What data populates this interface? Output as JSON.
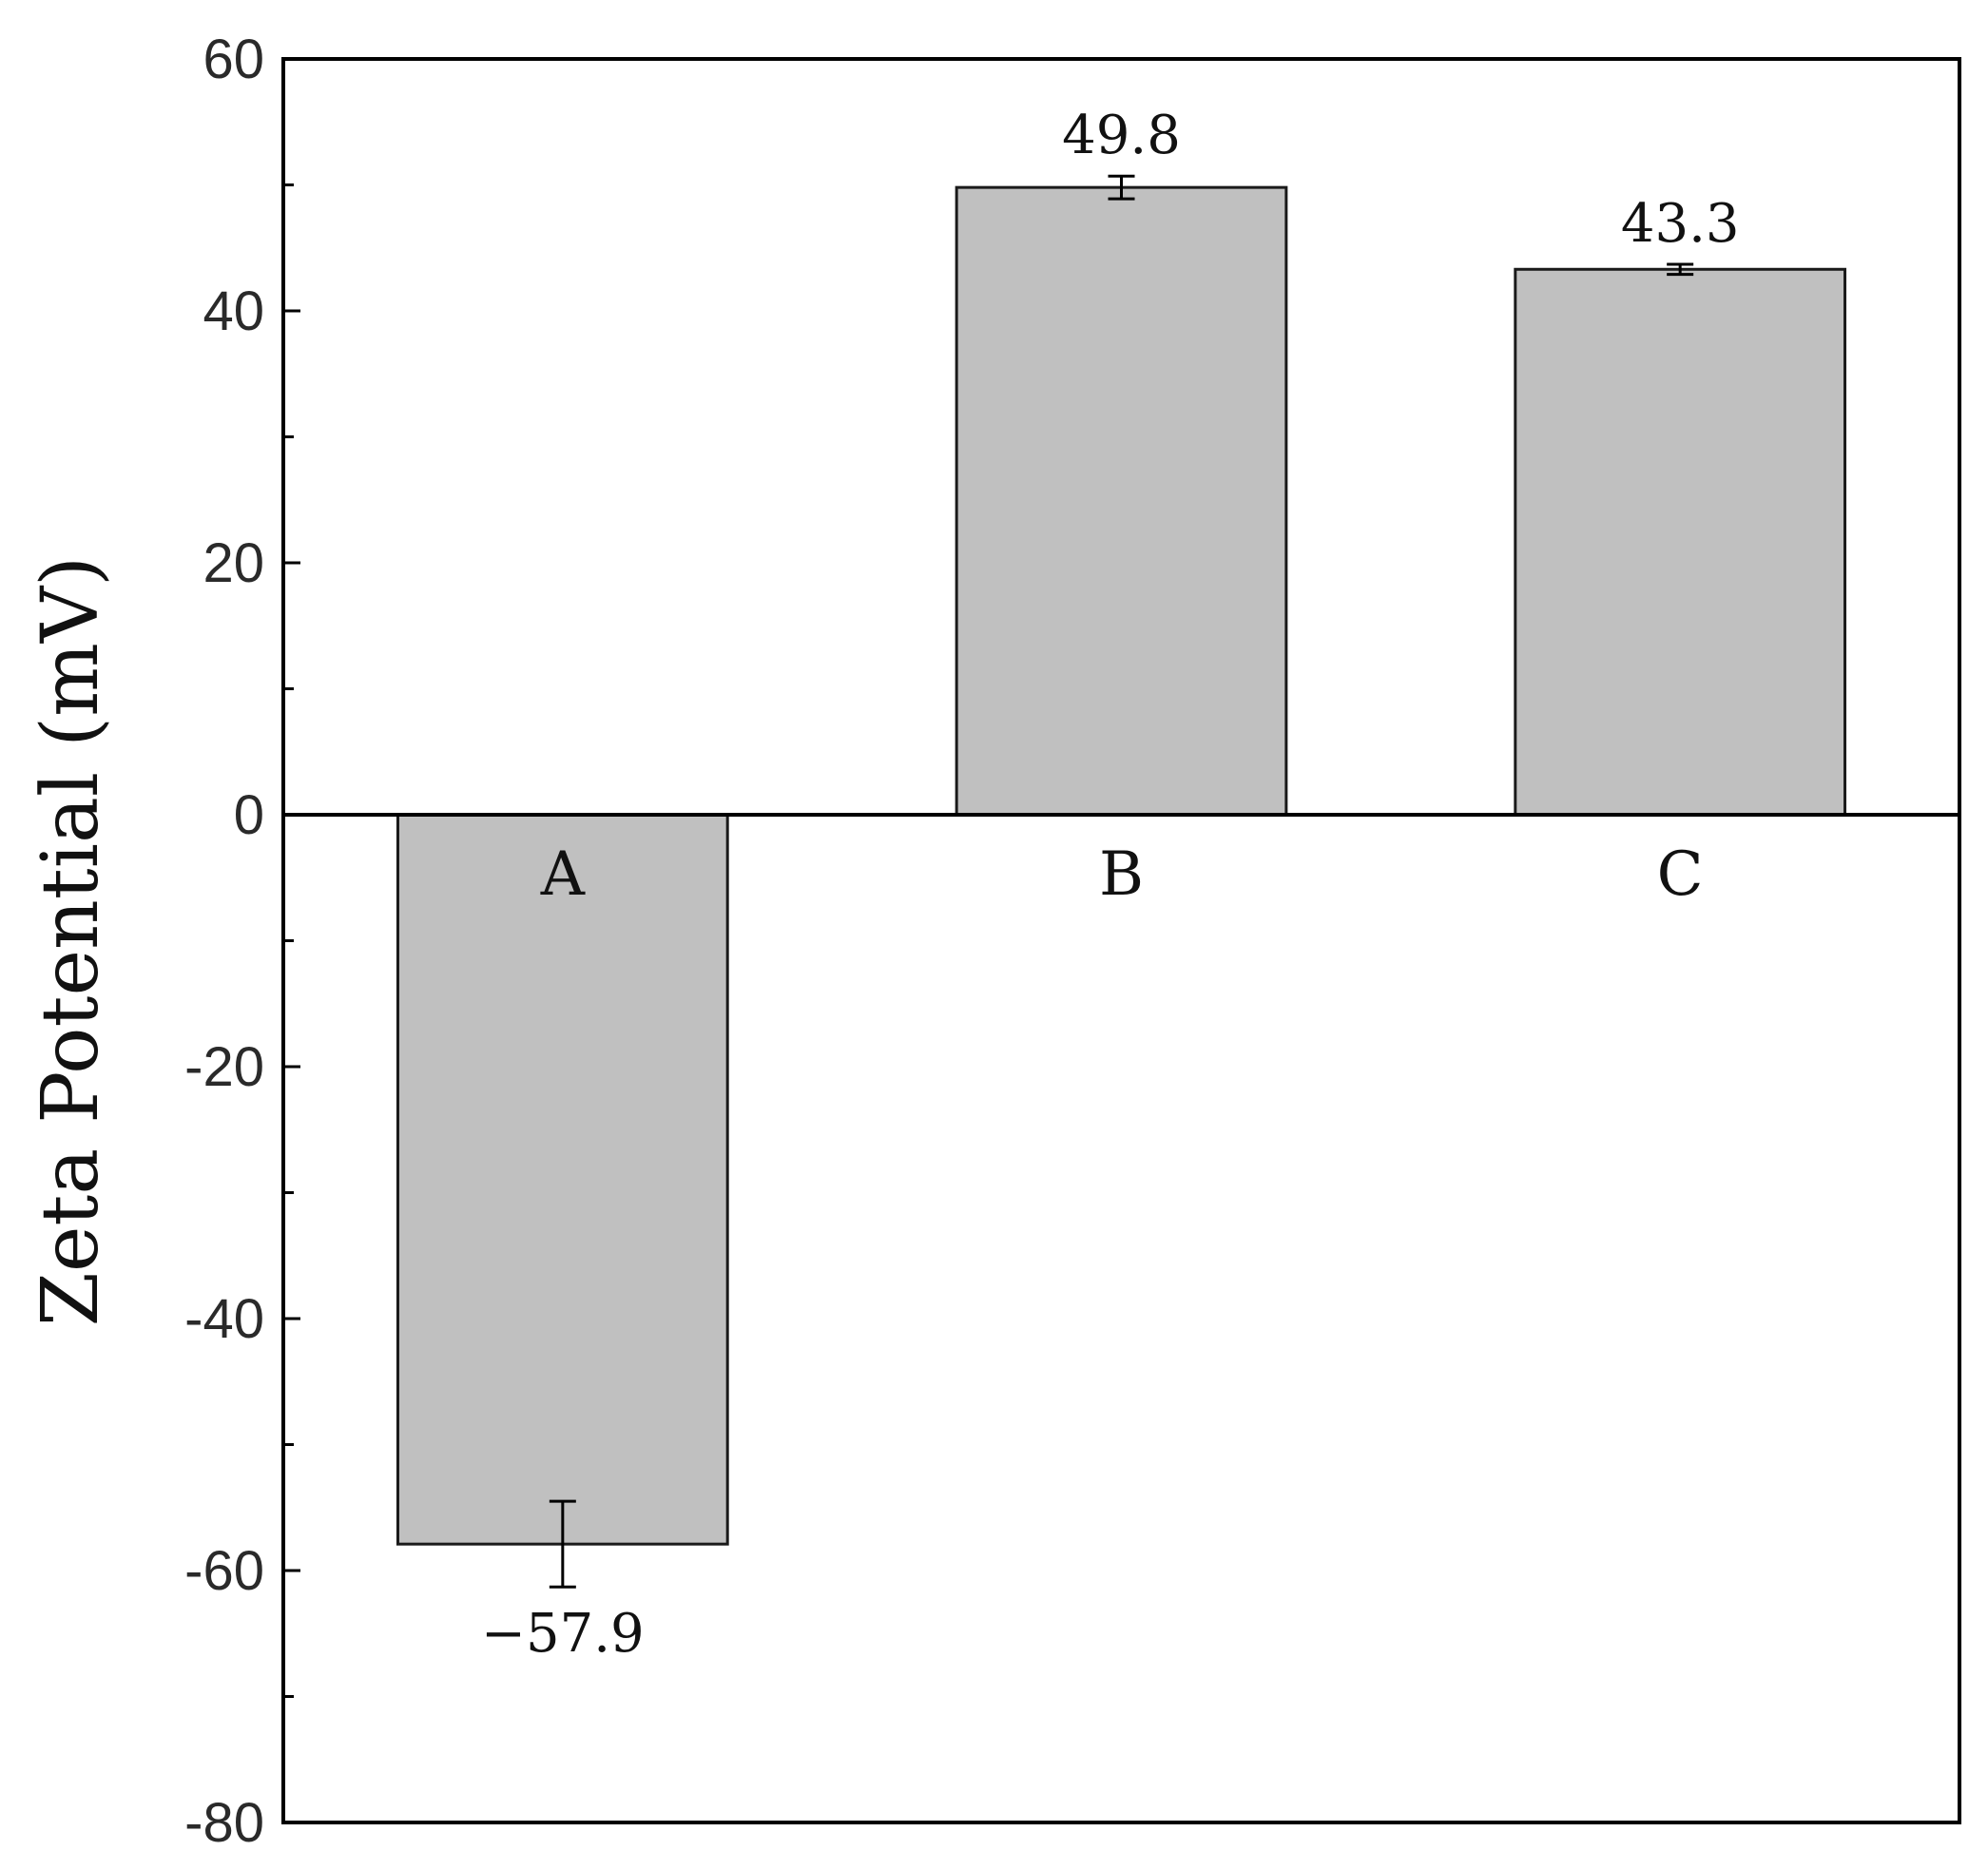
{
  "chart_data": {
    "type": "bar",
    "title": "",
    "xlabel": "",
    "ylabel": "Zeta Potential (mV)",
    "ylim": [
      -80,
      60
    ],
    "y_major_ticks": [
      60,
      40,
      20,
      0,
      -20,
      -40,
      -60,
      -80
    ],
    "y_minor_ticks": [
      50,
      30,
      10,
      -10,
      -30,
      -50,
      -70
    ],
    "y_tick_labels": [
      "60",
      "40",
      "20",
      "0",
      "-20",
      "-40",
      "-60",
      "-80"
    ],
    "categories": [
      "A",
      "B",
      "C"
    ],
    "values": [
      -57.9,
      49.8,
      43.3
    ],
    "value_labels": [
      "−57.9",
      "49.8",
      "43.3"
    ],
    "errors": [
      3.4,
      0.9,
      0.4
    ],
    "grid": false,
    "legend": false,
    "colors": {
      "bar_fill": "#c0c0c0",
      "bar_stroke": "#1a1a1a",
      "axis": "#000000"
    }
  }
}
